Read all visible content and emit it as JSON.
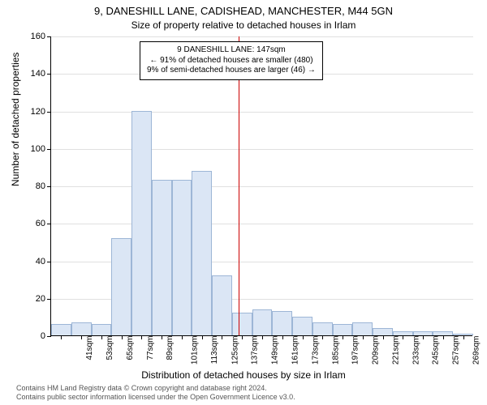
{
  "title": "9, DANESHILL LANE, CADISHEAD, MANCHESTER, M44 5GN",
  "subtitle": "Size of property relative to detached houses in Irlam",
  "y_axis_label": "Number of detached properties",
  "x_axis_label": "Distribution of detached houses by size in Irlam",
  "chart": {
    "type": "histogram",
    "ylim": [
      0,
      160
    ],
    "ytick_step": 20,
    "grid_color": "#e0e0e0",
    "bar_fill": "#dbe6f5",
    "bar_border": "#9db6d6",
    "ref_line_color": "#cc0000",
    "ref_line_value": 147,
    "x_start": 35,
    "bin_width": 12,
    "n_bins": 21,
    "x_unit": "sqm",
    "values": [
      6,
      7,
      6,
      52,
      120,
      83,
      83,
      88,
      32,
      12,
      14,
      13,
      10,
      7,
      6,
      7,
      4,
      2,
      2,
      2,
      1
    ]
  },
  "annotation": {
    "line1": "9 DANESHILL LANE: 147sqm",
    "line2": "← 91% of detached houses are smaller (480)",
    "line3": "9% of semi-detached houses are larger (46) →"
  },
  "footer": {
    "line1": "Contains HM Land Registry data © Crown copyright and database right 2024.",
    "line2": "Contains public sector information licensed under the Open Government Licence v3.0."
  }
}
